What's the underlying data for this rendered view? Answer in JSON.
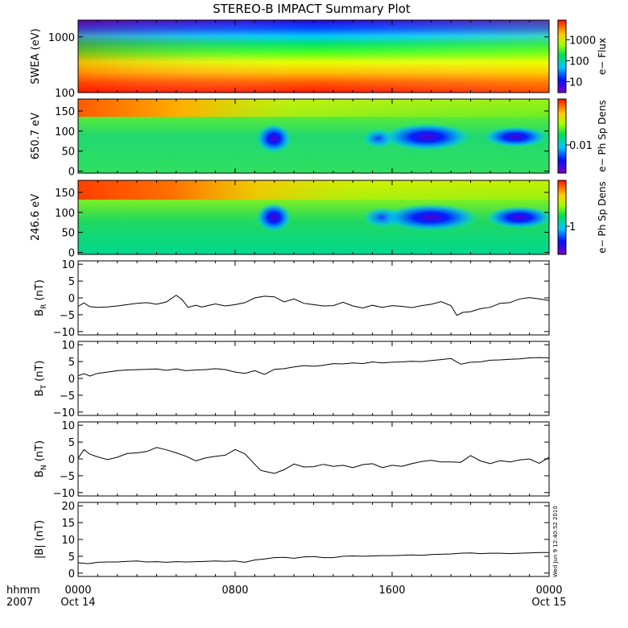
{
  "title": "STEREO-B IMPACT Summary Plot",
  "timestamp": "Wed Jun  9 12:40:52 2010",
  "time_axis": {
    "corner_labels": [
      "hhmm",
      "2007"
    ],
    "ticks": [
      {
        "label": "0000",
        "sub": "Oct 14",
        "hour": 0
      },
      {
        "label": "0800",
        "sub": "",
        "hour": 8
      },
      {
        "label": "1600",
        "sub": "",
        "hour": 16
      },
      {
        "label": "0000",
        "sub": "Oct 15",
        "hour": 24
      }
    ],
    "range_hours": [
      0,
      24
    ]
  },
  "spectrograms": [
    {
      "ylabel": "SWEA (eV)",
      "cbar_label": "e− Flux",
      "yscale": "log",
      "yrange": [
        100,
        2000
      ],
      "yticks": [
        {
          "v": 100,
          "t": "100"
        },
        {
          "v": 1000,
          "t": "1000"
        }
      ],
      "cbar_ticks": [
        {
          "f": 0.15,
          "t": "10"
        },
        {
          "f": 0.44,
          "t": "100"
        },
        {
          "f": 0.73,
          "t": "1000"
        }
      ]
    },
    {
      "ylabel": "650.7 eV",
      "cbar_label": "e− Ph Sp Dens",
      "yscale": "linear",
      "yrange": [
        -5,
        180
      ],
      "yticks": [
        {
          "v": 0,
          "t": "0"
        },
        {
          "v": 50,
          "t": "50"
        },
        {
          "v": 100,
          "t": "100"
        },
        {
          "v": 150,
          "t": "150"
        }
      ],
      "cbar_ticks": [
        {
          "f": 0.38,
          "t": "0.01"
        }
      ]
    },
    {
      "ylabel": "246.6 eV",
      "cbar_label": "e− Ph Sp Dens",
      "yscale": "linear",
      "yrange": [
        -5,
        180
      ],
      "yticks": [
        {
          "v": 0,
          "t": "0"
        },
        {
          "v": 50,
          "t": "50"
        },
        {
          "v": 100,
          "t": "100"
        },
        {
          "v": 150,
          "t": "150"
        }
      ],
      "cbar_ticks": [
        {
          "f": 0.38,
          "t": "1"
        }
      ]
    }
  ],
  "chart_data": [
    {
      "type": "line",
      "name": "BR",
      "ylabel_main": "B",
      "ylabel_sub": "R",
      "ylabel_unit": " (nT)",
      "ylim": [
        -11,
        11
      ],
      "yticks": [
        {
          "v": -10,
          "t": "−10"
        },
        {
          "v": -5,
          "t": "−5"
        },
        {
          "v": 0,
          "t": "0"
        },
        {
          "v": 5,
          "t": "5"
        },
        {
          "v": 10,
          "t": "10"
        }
      ],
      "x": [
        0,
        0.3,
        0.6,
        1,
        1.5,
        2,
        2.5,
        3,
        3.5,
        4,
        4.5,
        5,
        5.3,
        5.6,
        6,
        6.3,
        6.6,
        7,
        7.5,
        8,
        8.5,
        9,
        9.5,
        10,
        10.5,
        11,
        11.5,
        12,
        12.5,
        13,
        13.5,
        14,
        14.5,
        15,
        15.5,
        16,
        16.5,
        17,
        17.5,
        18,
        18.5,
        19,
        19.3,
        19.6,
        20,
        20.5,
        21,
        21.5,
        22,
        22.5,
        23,
        23.5,
        24
      ],
      "y": [
        -2.5,
        -1.5,
        -2.6,
        -2.8,
        -2.7,
        -2.4,
        -2,
        -1.6,
        -1.4,
        -1.9,
        -1.2,
        0.8,
        -0.5,
        -2.8,
        -2.2,
        -2.7,
        -2.3,
        -1.8,
        -2.4,
        -2,
        -1.4,
        0,
        0.5,
        0.3,
        -1.2,
        -0.3,
        -1.6,
        -2,
        -2.4,
        -2.3,
        -1.3,
        -2.4,
        -3,
        -2.2,
        -2.8,
        -2.3,
        -2.5,
        -2.9,
        -2.3,
        -1.9,
        -1.1,
        -2.3,
        -5.2,
        -4.3,
        -4.1,
        -3.2,
        -2.8,
        -1.6,
        -1.4,
        -0.3,
        0.1,
        -0.3,
        -0.8
      ]
    },
    {
      "type": "line",
      "name": "BT",
      "ylabel_main": "B",
      "ylabel_sub": "T",
      "ylabel_unit": " (nT)",
      "ylim": [
        -11,
        11
      ],
      "yticks": [
        {
          "v": -10,
          "t": "−10"
        },
        {
          "v": -5,
          "t": "−5"
        },
        {
          "v": 0,
          "t": "0"
        },
        {
          "v": 5,
          "t": "5"
        },
        {
          "v": 10,
          "t": "10"
        }
      ],
      "x": [
        0,
        0.3,
        0.6,
        1,
        1.5,
        2,
        2.5,
        3,
        3.5,
        4,
        4.5,
        5,
        5.5,
        6,
        6.5,
        7,
        7.5,
        8,
        8.5,
        9,
        9.5,
        10,
        10.5,
        11,
        11.5,
        12,
        12.5,
        13,
        13.5,
        14,
        14.5,
        15,
        15.5,
        16,
        16.5,
        17,
        17.5,
        18,
        18.5,
        19,
        19.5,
        20,
        20.5,
        21,
        21.5,
        22,
        22.5,
        23,
        23.5,
        24
      ],
      "y": [
        0.8,
        1.4,
        0.7,
        1.5,
        1.9,
        2.3,
        2.5,
        2.6,
        2.7,
        2.8,
        2.4,
        2.8,
        2.3,
        2.5,
        2.6,
        2.9,
        2.6,
        1.9,
        1.5,
        2.3,
        1.2,
        2.7,
        2.9,
        3.4,
        3.8,
        3.6,
        3.9,
        4.4,
        4.3,
        4.6,
        4.4,
        4.9,
        4.6,
        4.8,
        4.9,
        5.1,
        5,
        5.3,
        5.6,
        5.9,
        4.2,
        4.8,
        4.9,
        5.4,
        5.5,
        5.7,
        5.8,
        6.1,
        6.2,
        6.1
      ]
    },
    {
      "type": "line",
      "name": "BN",
      "ylabel_main": "B",
      "ylabel_sub": "N",
      "ylabel_unit": " (nT)",
      "ylim": [
        -11,
        11
      ],
      "yticks": [
        {
          "v": -10,
          "t": "−10"
        },
        {
          "v": -5,
          "t": "−5"
        },
        {
          "v": 0,
          "t": "0"
        },
        {
          "v": 5,
          "t": "5"
        },
        {
          "v": 10,
          "t": "10"
        }
      ],
      "x": [
        0,
        0.3,
        0.6,
        1,
        1.5,
        2,
        2.5,
        3,
        3.5,
        4,
        4.5,
        5,
        5.5,
        6,
        6.5,
        7,
        7.5,
        8,
        8.5,
        9,
        9.3,
        9.6,
        10,
        10.5,
        11,
        11.5,
        12,
        12.5,
        13,
        13.5,
        14,
        14.5,
        15,
        15.5,
        16,
        16.5,
        17,
        17.5,
        18,
        18.5,
        19,
        19.5,
        20,
        20.5,
        21,
        21.5,
        22,
        22.5,
        23,
        23.5,
        24
      ],
      "y": [
        0.2,
        2.8,
        1.4,
        0.6,
        -0.2,
        0.5,
        1.6,
        1.8,
        2.2,
        3.4,
        2.7,
        1.8,
        0.8,
        -0.6,
        0.3,
        0.8,
        1.1,
        2.8,
        1.5,
        -1.6,
        -3.4,
        -3.8,
        -4.3,
        -3.2,
        -1.5,
        -2.4,
        -2.3,
        -1.6,
        -2.2,
        -1.9,
        -2.6,
        -1.7,
        -1.4,
        -2.6,
        -1.9,
        -2.2,
        -1.4,
        -0.8,
        -0.4,
        -0.9,
        -0.9,
        -1,
        1,
        -0.6,
        -1.4,
        -0.5,
        -0.9,
        -0.3,
        0,
        -1.3,
        0.5
      ]
    },
    {
      "type": "line",
      "name": "|B|",
      "ylabel_main": "|B|",
      "ylabel_sub": "",
      "ylabel_unit": " (nT)",
      "ylim": [
        -1,
        21
      ],
      "yticks": [
        {
          "v": 0,
          "t": "0"
        },
        {
          "v": 5,
          "t": "5"
        },
        {
          "v": 10,
          "t": "10"
        },
        {
          "v": 15,
          "t": "15"
        },
        {
          "v": 20,
          "t": "20"
        }
      ],
      "x": [
        0,
        0.5,
        1,
        1.5,
        2,
        2.5,
        3,
        3.5,
        4,
        4.5,
        5,
        5.5,
        6,
        6.5,
        7,
        7.5,
        8,
        8.5,
        9,
        9.5,
        10,
        10.5,
        11,
        11.5,
        12,
        12.5,
        13,
        13.5,
        14,
        14.5,
        15,
        15.5,
        16,
        16.5,
        17,
        17.5,
        18,
        18.5,
        19,
        19.5,
        20,
        20.5,
        21,
        21.5,
        22,
        22.5,
        23,
        23.5,
        24
      ],
      "y": [
        3.1,
        2.8,
        3.2,
        3.3,
        3.3,
        3.5,
        3.6,
        3.3,
        3.4,
        3.2,
        3.4,
        3.3,
        3.4,
        3.5,
        3.6,
        3.5,
        3.6,
        3.2,
        3.9,
        4.2,
        4.6,
        4.7,
        4.4,
        4.8,
        4.9,
        4.6,
        4.6,
        5,
        5.1,
        5,
        5.1,
        5.2,
        5.2,
        5.3,
        5.4,
        5.3,
        5.5,
        5.6,
        5.7,
        5.9,
        6,
        5.8,
        5.9,
        5.9,
        5.8,
        5.9,
        6,
        6.1,
        6.1
      ]
    }
  ]
}
